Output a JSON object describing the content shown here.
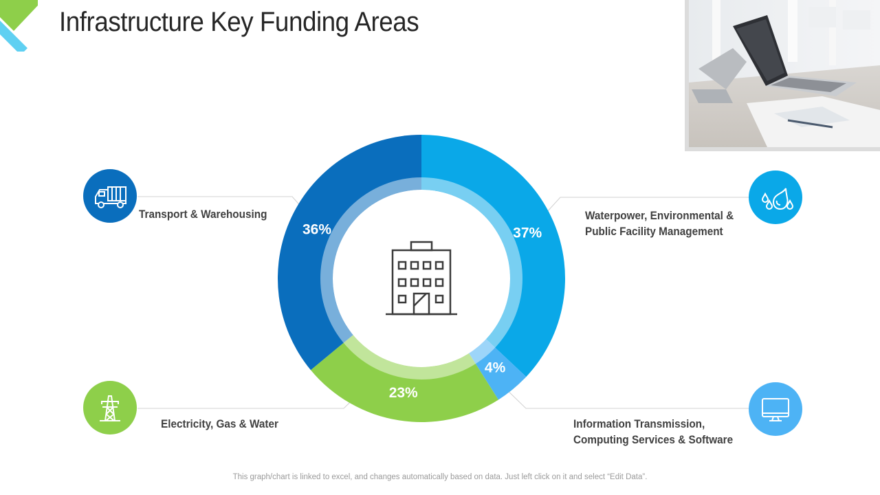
{
  "title": "Infrastructure Key Funding Areas",
  "footer": "This graph/chart is linked to excel, and changes automatically based on data. Just left click on it and select “Edit Data”.",
  "colors": {
    "transport": "#0a6ebd",
    "waterpower": "#0aa8e8",
    "information": "#4db3f5",
    "electricity": "#8ecf4a"
  },
  "icons": {
    "transport": "truck-icon",
    "waterpower": "water-drops-icon",
    "information": "monitor-icon",
    "electricity": "power-tower-icon",
    "center": "building-icon"
  },
  "chart_data": {
    "type": "pie",
    "title": "Infrastructure Key Funding Areas",
    "categories": [
      "Waterpower, Environmental & Public Facility Management",
      "Information Transmission, Computing Services & Software",
      "Electricity, Gas & Water",
      "Transport & Warehousing"
    ],
    "values": [
      37,
      4,
      23,
      36
    ],
    "value_labels": [
      "37%",
      "4%",
      "23%",
      "36%"
    ],
    "label_lines": [
      [
        "Waterpower, Environmental &",
        "Public Facility Management"
      ],
      [
        "Information Transmission,",
        "Computing Services & Software"
      ],
      [
        "Electricity, Gas & Water"
      ],
      [
        "Transport & Warehousing"
      ]
    ],
    "legend": "none"
  }
}
